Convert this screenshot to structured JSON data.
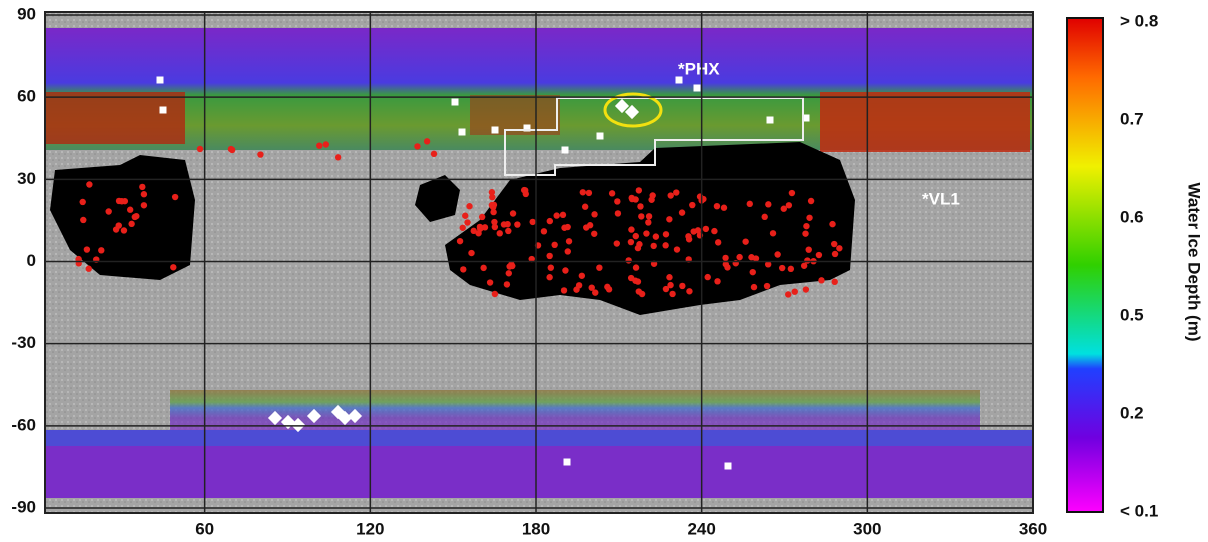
{
  "map": {
    "xlim": [
      0,
      360
    ],
    "ylim": [
      -90,
      90
    ],
    "xticks": [
      60,
      120,
      180,
      240,
      300,
      360
    ],
    "yticks": [
      -90,
      -60,
      -30,
      0,
      30,
      60,
      90
    ],
    "labels": {
      "phx": "*PHX",
      "vl1": "*VL1"
    }
  },
  "colorbar": {
    "title": "Water Ice Depth (m)",
    "ticks": [
      {
        "value": 0.8,
        "label": "> 0.8"
      },
      0.7,
      0.6,
      0.5,
      0.2,
      {
        "value": 0.1,
        "label": "< 0.1"
      }
    ]
  }
}
